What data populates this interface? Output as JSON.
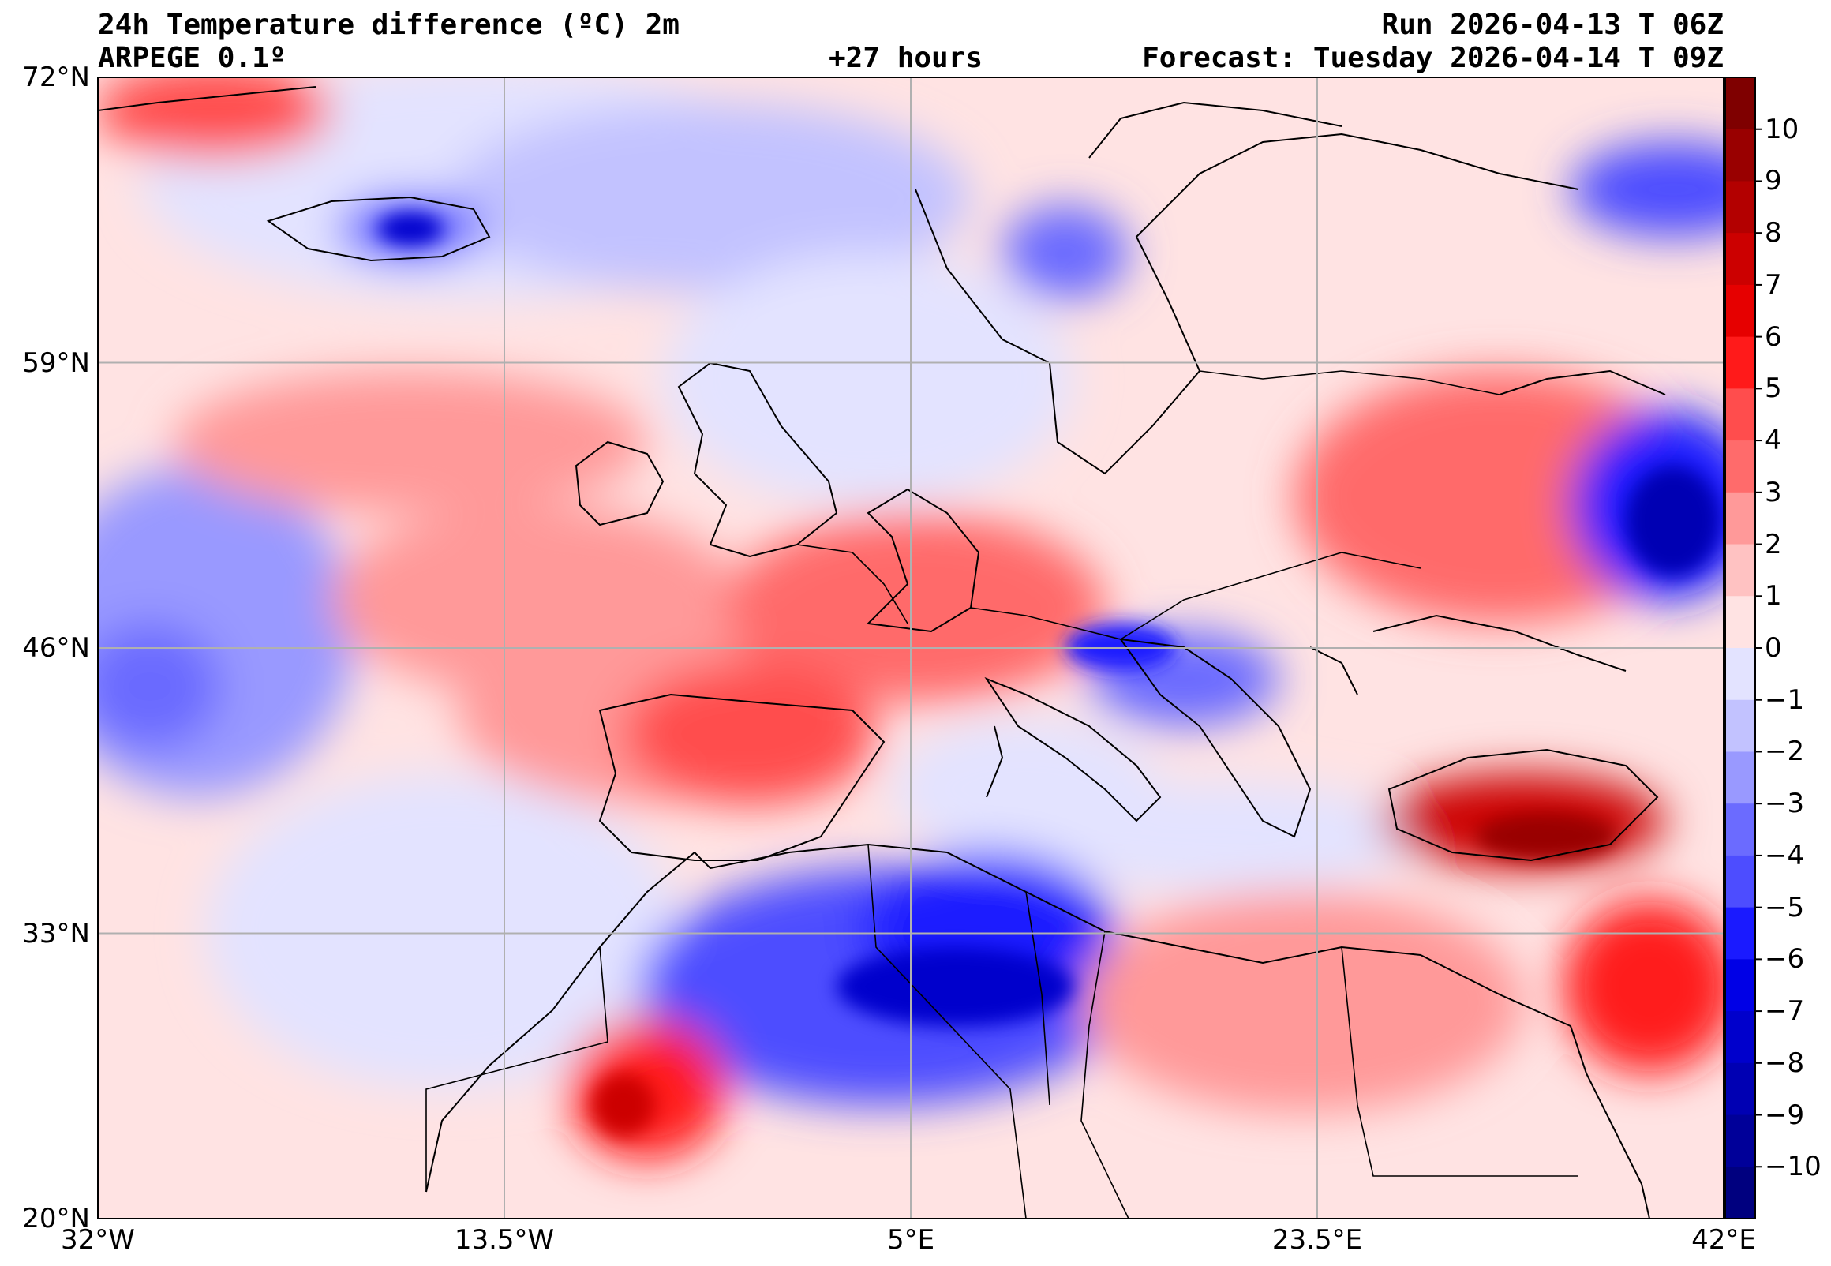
{
  "header": {
    "title": "24h Temperature difference (ºC) 2m",
    "run": "Run 2026-04-13 T 06Z",
    "model": "ARPEGE 0.1º",
    "lead": "+27 hours",
    "forecast": "Forecast: Tuesday 2026-04-14 T 09Z"
  },
  "map": {
    "lon_range": [
      -32,
      42
    ],
    "lat_range": [
      20,
      72
    ],
    "lon_ticks": [
      "32°W",
      "13.5°W",
      "5°E",
      "23.5°E",
      "42°E"
    ],
    "lat_ticks": [
      "72°N",
      "59°N",
      "46°N",
      "33°N",
      "20°N"
    ],
    "lon_tick_values": [
      -32,
      -13.5,
      5,
      23.5,
      42
    ],
    "lat_tick_values": [
      72,
      59,
      46,
      33,
      20
    ],
    "grid": true
  },
  "colorbar": {
    "min": -11,
    "max": 11,
    "tick_labels": [
      "10",
      "9",
      "8",
      "7",
      "6",
      "5",
      "4",
      "3",
      "2",
      "1",
      "0",
      "−1",
      "−2",
      "−3",
      "−4",
      "−5",
      "−6",
      "−7",
      "−8",
      "−9",
      "−10"
    ],
    "tick_values": [
      10,
      9,
      8,
      7,
      6,
      5,
      4,
      3,
      2,
      1,
      0,
      -1,
      -2,
      -3,
      -4,
      -5,
      -6,
      -7,
      -8,
      -9,
      -10
    ],
    "colors": [
      "#7f0000",
      "#990000",
      "#b30000",
      "#cc0000",
      "#e60000",
      "#ff1a1a",
      "#ff4d4d",
      "#ff6b6b",
      "#ff9999",
      "#ffc2c2",
      "#ffe3e3",
      "#e3e3ff",
      "#c2c2ff",
      "#9999ff",
      "#6b6bff",
      "#4d4dff",
      "#1a1aff",
      "#0000e6",
      "#0000cc",
      "#0000b3",
      "#000099",
      "#00007f"
    ]
  }
}
